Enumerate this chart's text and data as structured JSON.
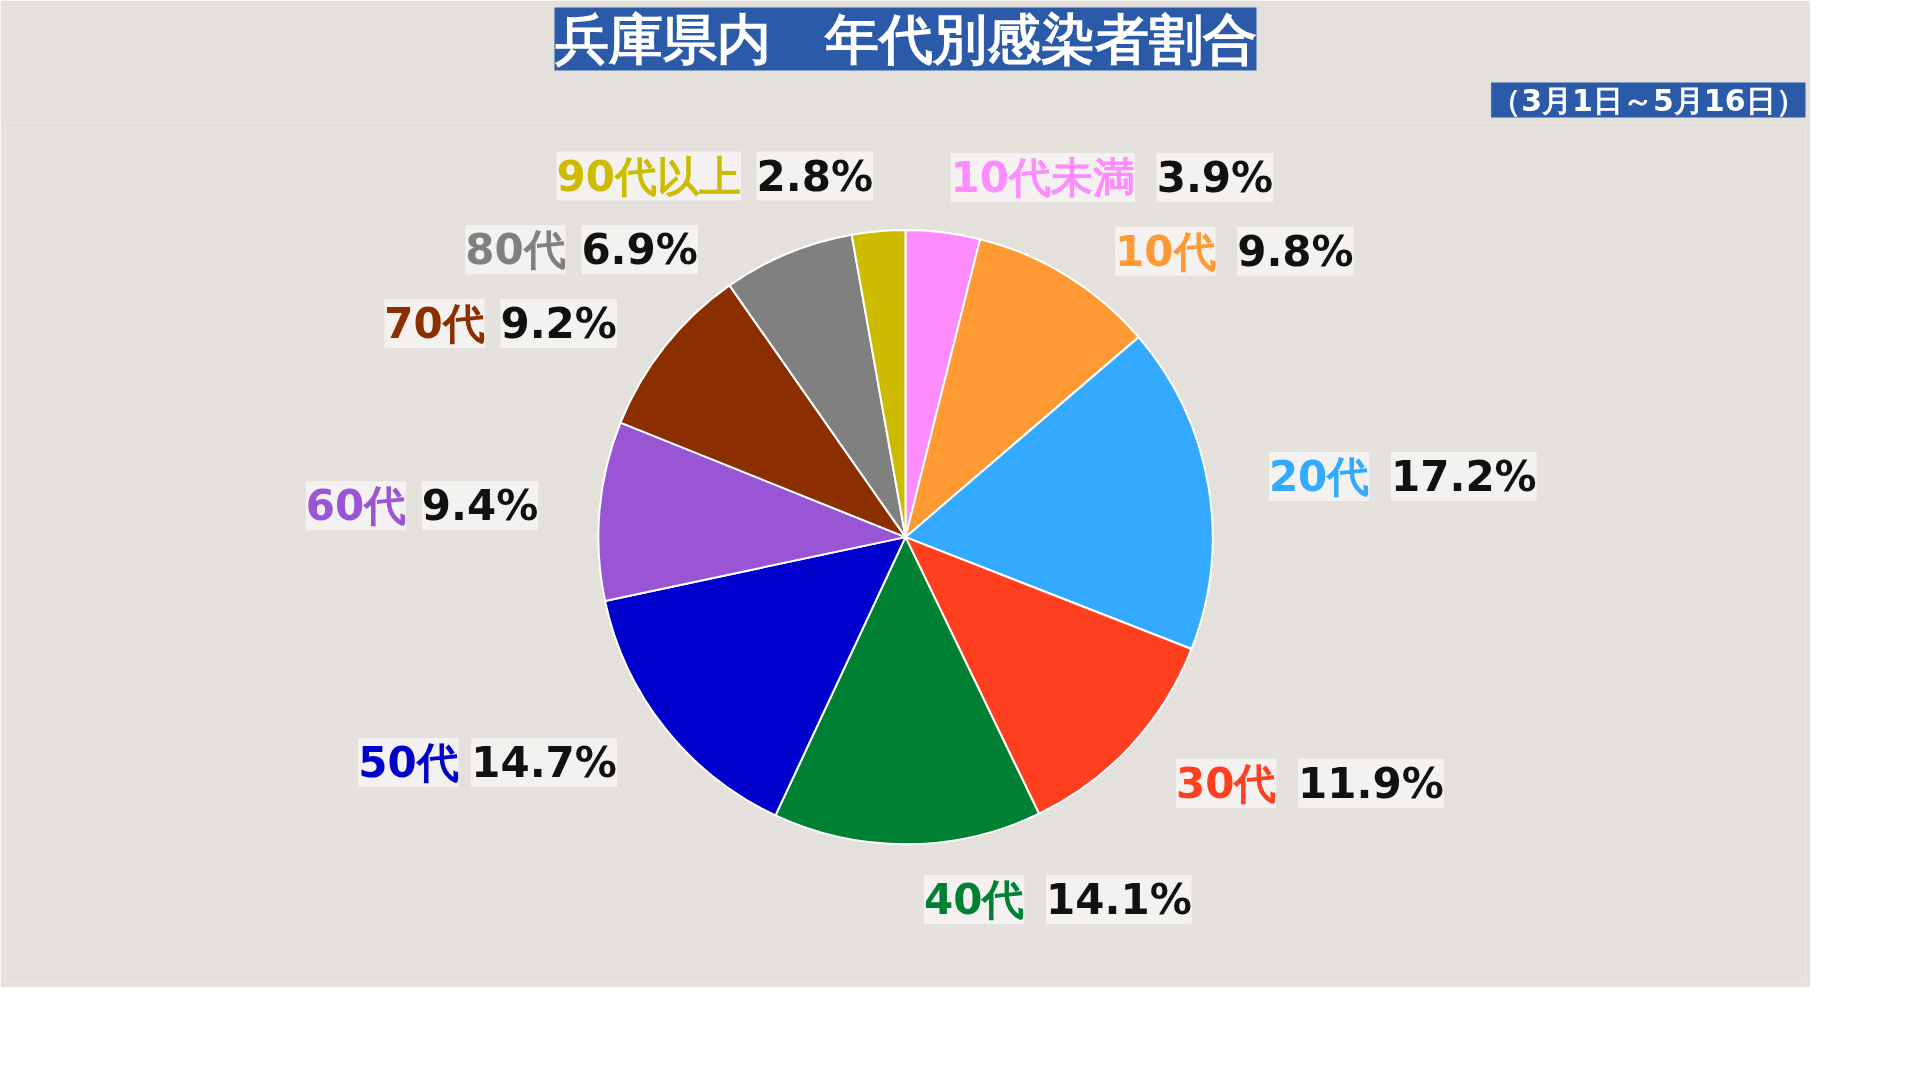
{
  "chart_data": {
    "type": "pie",
    "title": "兵庫県内　年代別感染者割合",
    "subtitle": "（3月1日～5月16日）",
    "categories": [
      "10代未満",
      "10代",
      "20代",
      "30代",
      "40代",
      "50代",
      "60代",
      "70代",
      "80代",
      "90代以上"
    ],
    "values": [
      3.9,
      9.8,
      17.2,
      11.9,
      14.1,
      14.7,
      9.4,
      9.2,
      6.9,
      2.8
    ],
    "colors": [
      "#ff8cff",
      "#ff9933",
      "#33aaff",
      "#ff4020",
      "#008033",
      "#0000cc",
      "#9955d4",
      "#8b2e00",
      "#808080",
      "#ccbb00"
    ],
    "value_labels": [
      "3.9%",
      "9.8%",
      "17.2%",
      "11.9%",
      "14.1%",
      "14.7%",
      "9.4%",
      "9.2%",
      "6.9%",
      "2.8%"
    ]
  }
}
